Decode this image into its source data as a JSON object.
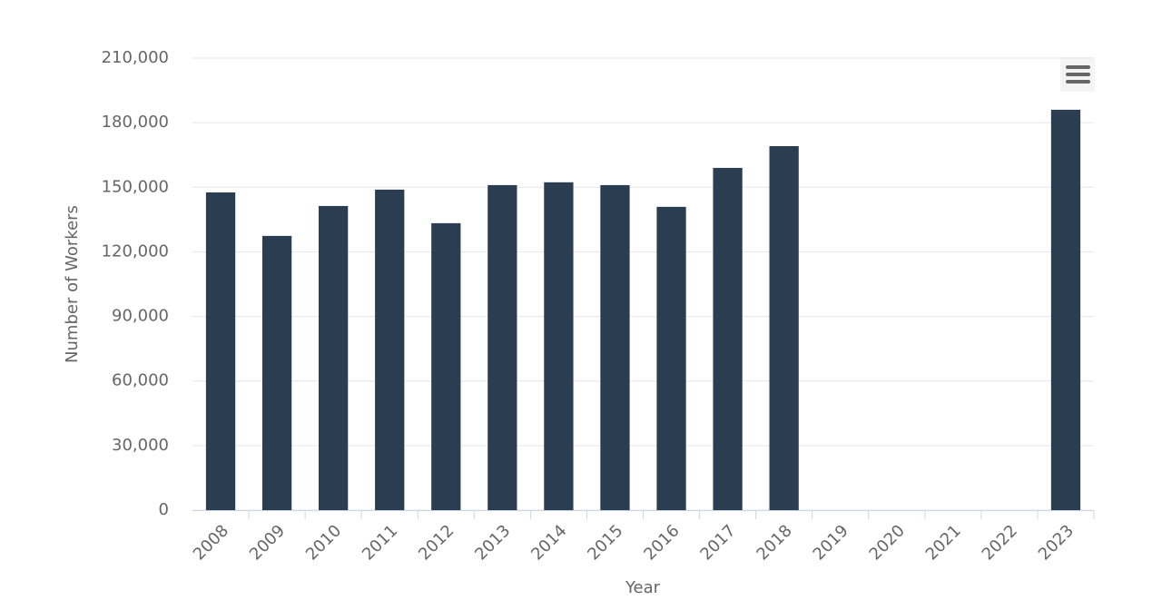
{
  "chart_data": {
    "type": "bar",
    "x_label": "Year",
    "y_label": "Number of Workers",
    "categories": [
      "2008",
      "2009",
      "2010",
      "2011",
      "2012",
      "2013",
      "2014",
      "2015",
      "2016",
      "2017",
      "2018",
      "2019",
      "2020",
      "2021",
      "2022",
      "2023"
    ],
    "values": [
      147600,
      127400,
      141300,
      148900,
      133300,
      151000,
      152300,
      151000,
      140900,
      159000,
      169100,
      null,
      null,
      null,
      null,
      186000
    ],
    "color": "#2b3d50",
    "ylim": [
      0,
      210000
    ],
    "yticks": [
      0,
      {
        "value": 30000,
        "label": "30,000"
      },
      {
        "value": 60000,
        "label": "60,000"
      },
      {
        "value": 90000,
        "label": "90,000"
      },
      {
        "value": 120000,
        "label": "120,000"
      },
      {
        "value": 150000,
        "label": "150,000"
      },
      {
        "value": 180000,
        "label": "180,000"
      },
      {
        "value": 210000,
        "label": "210,000"
      }
    ],
    "grid": true
  }
}
